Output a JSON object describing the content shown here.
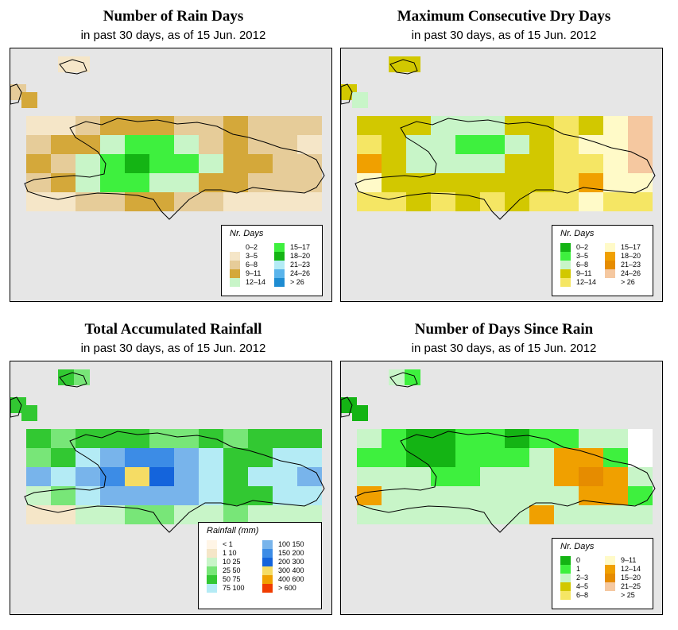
{
  "panels": [
    {
      "id": "rain_days",
      "title": "Number of Rain Days",
      "subtitle": "in past 30 days, as of  15 Jun. 2012",
      "legend": {
        "title": "Nr. Days",
        "items": [
          {
            "label": "0–2",
            "color": "#ffffff"
          },
          {
            "label": "3–5",
            "color": "#f5e6c8"
          },
          {
            "label": "6–8",
            "color": "#e6cc99"
          },
          {
            "label": "9–11",
            "color": "#d4a83a"
          },
          {
            "label": "12–14",
            "color": "#c8f5c8"
          },
          {
            "label": "15–17",
            "color": "#3ef03e"
          },
          {
            "label": "18–20",
            "color": "#14b414"
          },
          {
            "label": "21–23",
            "color": "#b4ebf5"
          },
          {
            "label": "24–26",
            "color": "#5ab4eb"
          },
          {
            "label": "> 26",
            "color": "#1e8cd2"
          }
        ]
      },
      "cells": [
        [
          1,
          1,
          2,
          3,
          3,
          3,
          2,
          2,
          3,
          2,
          2,
          2
        ],
        [
          2,
          3,
          3,
          4,
          5,
          5,
          4,
          2,
          3,
          2,
          2,
          1
        ],
        [
          3,
          2,
          4,
          5,
          6,
          5,
          5,
          4,
          3,
          3,
          2,
          2
        ],
        [
          2,
          3,
          4,
          5,
          5,
          4,
          4,
          3,
          3,
          2,
          2,
          2
        ],
        [
          1,
          1,
          2,
          2,
          3,
          3,
          2,
          2,
          1,
          1,
          1,
          1
        ]
      ]
    },
    {
      "id": "dry_days",
      "title": "Maximum Consecutive Dry Days",
      "subtitle": "in past 30 days, as of  15 Jun. 2012",
      "legend": {
        "title": "Nr. Days",
        "items": [
          {
            "label": "0–2",
            "color": "#14b414"
          },
          {
            "label": "3–5",
            "color": "#3ef03e"
          },
          {
            "label": "6–8",
            "color": "#c8f5c8"
          },
          {
            "label": "9–11",
            "color": "#d2c800"
          },
          {
            "label": "12–14",
            "color": "#f5e664"
          },
          {
            "label": "15–17",
            "color": "#fffac8"
          },
          {
            "label": "18–20",
            "color": "#f0a000"
          },
          {
            "label": "21–23",
            "color": "#e68c00"
          },
          {
            "label": "24–26",
            "color": "#f5c8a0"
          },
          {
            "label": "> 26",
            "color": "#ffffff"
          }
        ]
      },
      "cells": [
        [
          3,
          3,
          3,
          2,
          2,
          2,
          3,
          3,
          4,
          3,
          5,
          8
        ],
        [
          4,
          3,
          2,
          2,
          1,
          1,
          2,
          3,
          4,
          5,
          5,
          8
        ],
        [
          6,
          3,
          2,
          2,
          2,
          2,
          3,
          3,
          4,
          4,
          5,
          8
        ],
        [
          5,
          3,
          3,
          3,
          3,
          3,
          3,
          3,
          4,
          6,
          5,
          5
        ],
        [
          4,
          4,
          3,
          4,
          3,
          4,
          3,
          4,
          4,
          5,
          4,
          4
        ]
      ]
    },
    {
      "id": "rainfall",
      "title": "Total Accumulated Rainfall",
      "subtitle": "in past 30 days, as of  15 Jun. 2012",
      "legend": {
        "title": "Rainfall (mm)",
        "items": [
          {
            "label": "< 1",
            "color": "#fff5e6"
          },
          {
            "label": "1   10",
            "color": "#f5e6c8"
          },
          {
            "label": "10   25",
            "color": "#c8f5c8"
          },
          {
            "label": "25   50",
            "color": "#78e678"
          },
          {
            "label": "50   75",
            "color": "#32c832"
          },
          {
            "label": "75  100",
            "color": "#b4ebf5"
          },
          {
            "label": "100  150",
            "color": "#78b4eb"
          },
          {
            "label": "150  200",
            "color": "#3c8ce6"
          },
          {
            "label": "200  300",
            "color": "#1464dc"
          },
          {
            "label": "300  400",
            "color": "#f5dc64"
          },
          {
            "label": "400  600",
            "color": "#f0a000"
          },
          {
            "label": "> 600",
            "color": "#f03c00"
          }
        ]
      },
      "cells": [
        [
          4,
          3,
          4,
          4,
          4,
          3,
          3,
          4,
          3,
          4,
          4,
          4
        ],
        [
          3,
          4,
          5,
          6,
          7,
          7,
          6,
          5,
          4,
          4,
          5,
          5
        ],
        [
          6,
          5,
          6,
          7,
          9,
          8,
          6,
          5,
          4,
          5,
          5,
          6
        ],
        [
          2,
          3,
          5,
          6,
          6,
          6,
          6,
          5,
          4,
          4,
          5,
          5
        ],
        [
          1,
          1,
          2,
          2,
          3,
          3,
          2,
          2,
          3,
          2,
          2,
          2
        ]
      ]
    },
    {
      "id": "since_rain",
      "title": "Number of Days Since Rain",
      "subtitle": "in past 30 days, as of  15 Jun. 2012",
      "legend": {
        "title": "Nr. Days",
        "items": [
          {
            "label": "0",
            "color": "#14b414"
          },
          {
            "label": "1",
            "color": "#3ef03e"
          },
          {
            "label": "2–3",
            "color": "#c8f5c8"
          },
          {
            "label": "4–5",
            "color": "#d2c800"
          },
          {
            "label": "6–8",
            "color": "#f5e664"
          },
          {
            "label": "9–11",
            "color": "#fffac8"
          },
          {
            "label": "12–14",
            "color": "#f0a000"
          },
          {
            "label": "15–20",
            "color": "#e68c00"
          },
          {
            "label": "21–25",
            "color": "#f5c8a0"
          },
          {
            "label": "> 25",
            "color": "#ffffff"
          }
        ]
      },
      "cells": [
        [
          2,
          1,
          0,
          0,
          1,
          1,
          0,
          1,
          1,
          2,
          2,
          9
        ],
        [
          1,
          1,
          0,
          0,
          1,
          1,
          1,
          2,
          6,
          6,
          1,
          9
        ],
        [
          2,
          2,
          2,
          1,
          1,
          2,
          2,
          2,
          6,
          7,
          6,
          2
        ],
        [
          6,
          2,
          2,
          2,
          2,
          2,
          2,
          2,
          2,
          6,
          6,
          1
        ],
        [
          2,
          2,
          2,
          2,
          2,
          2,
          2,
          6,
          2,
          2,
          2,
          2
        ]
      ]
    }
  ]
}
